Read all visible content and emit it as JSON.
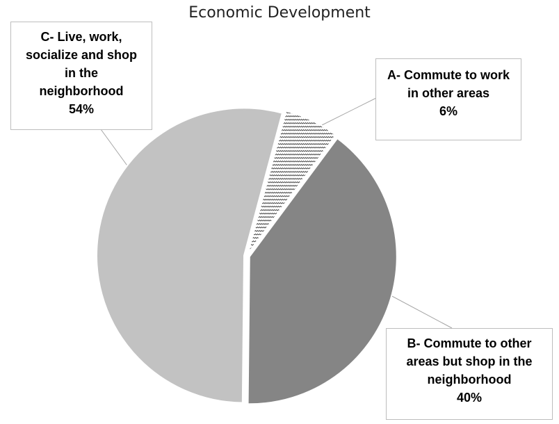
{
  "chart_data": {
    "type": "pie",
    "title": "Economic Development",
    "slices": [
      {
        "key": "a",
        "label_lines": [
          "A- Commute to work",
          "in other areas"
        ],
        "value_text": "6%",
        "value": 6,
        "fill": "pattern",
        "color": "#ffffff"
      },
      {
        "key": "b",
        "label_lines": [
          "B- Commute to other",
          "areas but shop in the",
          "neighborhood"
        ],
        "value_text": "40%",
        "value": 40,
        "fill": "solid",
        "color": "#858585"
      },
      {
        "key": "c",
        "label_lines": [
          "C- Live, work,",
          "socialize and shop",
          "in the",
          "neighborhood"
        ],
        "value_text": "54%",
        "value": 54,
        "fill": "solid",
        "color": "#c2c2c2"
      }
    ]
  }
}
